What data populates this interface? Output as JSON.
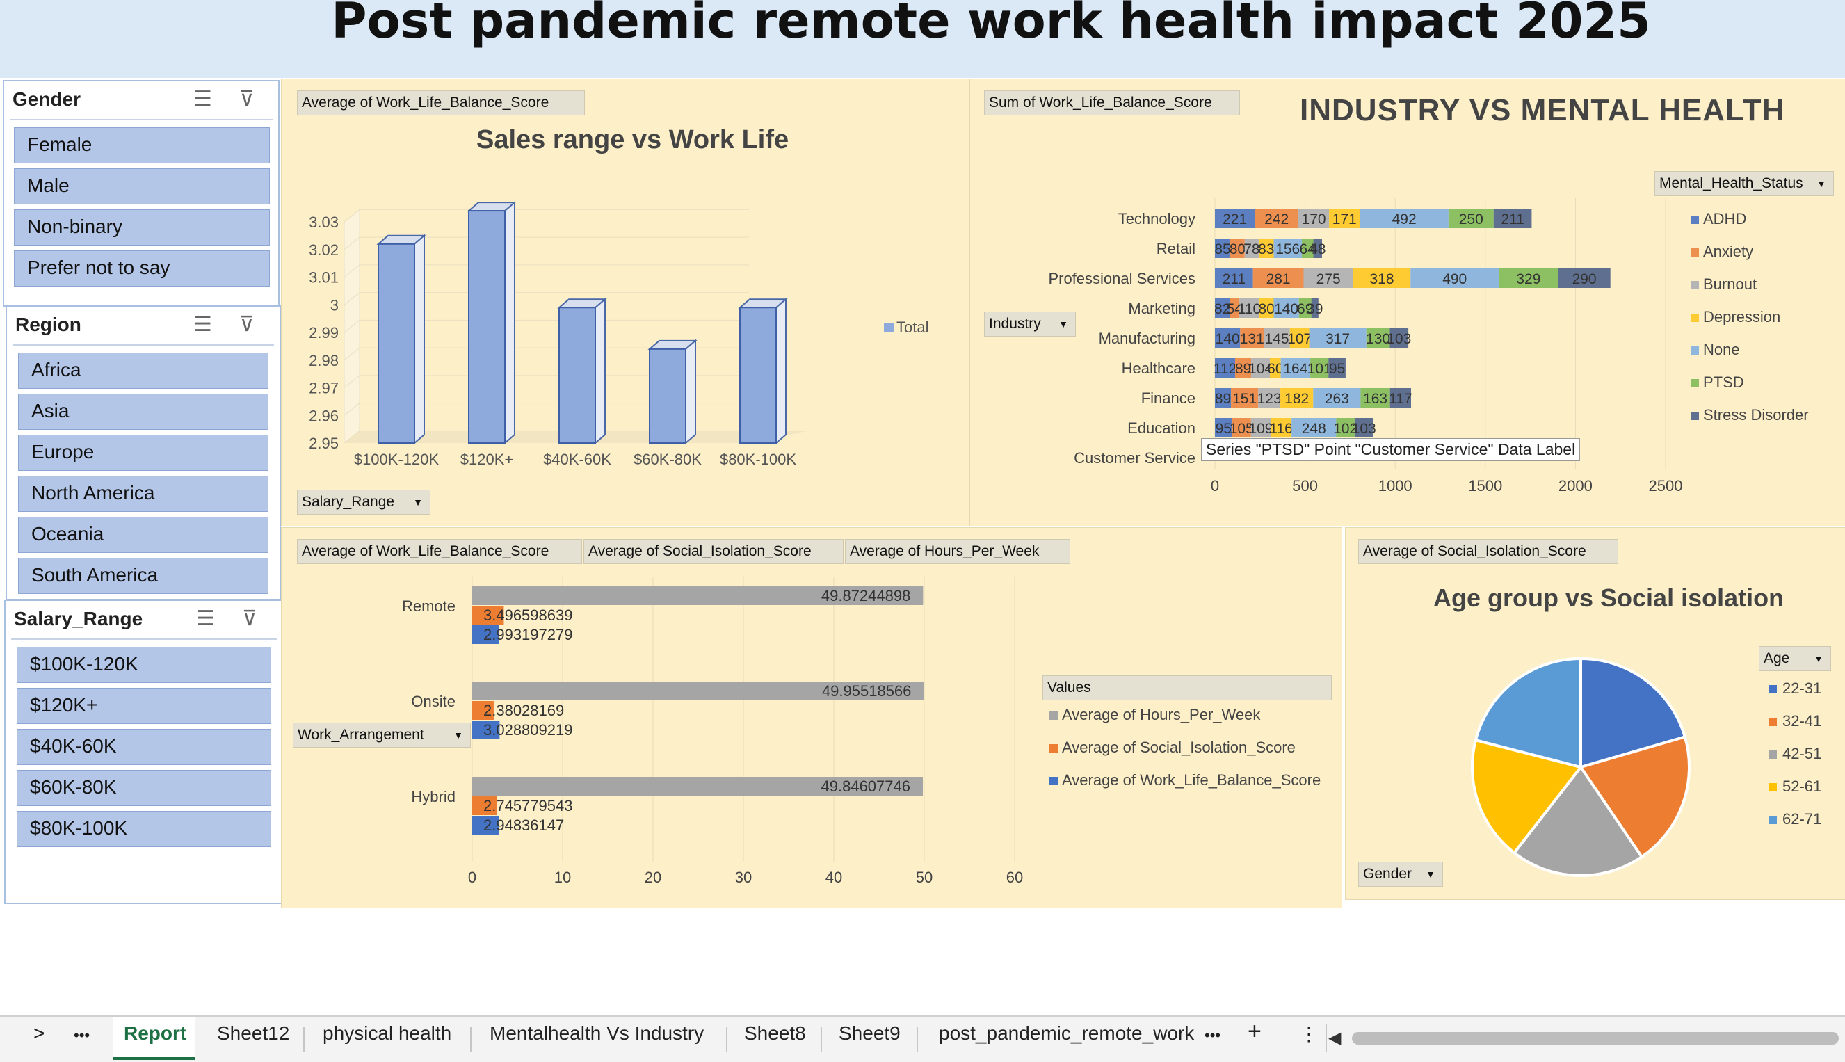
{
  "title": "Post pandemic remote work health impact 2025",
  "slicers": {
    "gender": {
      "title": "Gender",
      "items": [
        "Female",
        "Male",
        "Non-binary",
        "Prefer not to say"
      ]
    },
    "region": {
      "title": "Region",
      "items": [
        "Africa",
        "Asia",
        "Europe",
        "North America",
        "Oceania",
        "South America"
      ]
    },
    "salary": {
      "title": "Salary_Range",
      "items": [
        "$100K-120K",
        "$120K+",
        "$40K-60K",
        "$60K-80K",
        "$80K-100K"
      ]
    }
  },
  "chart1": {
    "field_value": "Average of Work_Life_Balance_Score",
    "title": "Sales range vs Work Life",
    "axis_field": "Salary_Range",
    "legend": "Total"
  },
  "chart2": {
    "field_value": "Sum of Work_Life_Balance_Score",
    "title": "INDUSTRY VS MENTAL HEALTH",
    "axis_field": "Industry",
    "legend_field": "Mental_Health_Status",
    "tooltip": "Series \"PTSD\" Point \"Customer Service\" Data Label"
  },
  "chart3": {
    "fields": [
      "Average of Work_Life_Balance_Score",
      "Average of Social_Isolation_Score",
      "Average of Hours_Per_Week"
    ],
    "axis_field": "Work_Arrangement",
    "legend_title": "Values"
  },
  "chart4": {
    "field_value": "Average of Social_Isolation_Score",
    "title": "Age group vs Social isolation",
    "legend_field": "Age",
    "filter_field": "Gender"
  },
  "chart_data": [
    {
      "type": "bar",
      "categories": [
        "$100K-120K",
        "$120K+",
        "$40K-60K",
        "$60K-80K",
        "$80K-100K"
      ],
      "series": [
        {
          "name": "Total",
          "values": [
            3.022,
            3.034,
            2.999,
            2.984,
            2.999
          ]
        }
      ],
      "title": "Sales range vs Work Life",
      "ylim": [
        2.95,
        3.03
      ],
      "yticks": [
        "2.95",
        "2.96",
        "2.97",
        "2.98",
        "2.99",
        "3",
        "3.01",
        "3.02",
        "3.03"
      ],
      "legend": "right"
    },
    {
      "type": "bar",
      "orientation": "horizontal",
      "stacked": true,
      "title": "INDUSTRY VS MENTAL HEALTH",
      "categories": [
        "Technology",
        "Retail",
        "Professional Services",
        "Marketing",
        "Manufacturing",
        "Healthcare",
        "Finance",
        "Education",
        "Customer Service"
      ],
      "series": [
        {
          "name": "ADHD",
          "color": "#5b7fc0",
          "values": [
            221,
            85,
            211,
            82,
            140,
            112,
            89,
            95,
            0
          ]
        },
        {
          "name": "Anxiety",
          "color": "#ed8f4f",
          "values": [
            242,
            80,
            281,
            54,
            131,
            89,
            151,
            105,
            0
          ]
        },
        {
          "name": "Burnout",
          "color": "#b5b5b5",
          "values": [
            170,
            78,
            275,
            110,
            145,
            104,
            123,
            109,
            0
          ]
        },
        {
          "name": "Depression",
          "color": "#ffcb33",
          "values": [
            171,
            83,
            318,
            80,
            107,
            60,
            182,
            116,
            0
          ]
        },
        {
          "name": "None",
          "color": "#8fb7de",
          "values": [
            492,
            156,
            490,
            140,
            317,
            164,
            263,
            248,
            0
          ]
        },
        {
          "name": "PTSD",
          "color": "#8dc063",
          "values": [
            250,
            64,
            329,
            69,
            130,
            101,
            163,
            102,
            0
          ]
        },
        {
          "name": "Stress Disorder",
          "color": "#5f6f8f",
          "values": [
            211,
            48,
            290,
            39,
            103,
            95,
            117,
            103,
            0
          ]
        }
      ],
      "data_labels": [
        [
          "221",
          "242",
          "170",
          "171",
          "492",
          "250",
          "211"
        ],
        [
          "85",
          "80",
          "78",
          "83",
          "156",
          "64",
          "48"
        ],
        [
          "211",
          "281",
          "275",
          "318",
          "490",
          "329",
          "290"
        ],
        [
          "82",
          "54",
          "110",
          "80",
          "140",
          "69",
          "39"
        ],
        [
          "140",
          "131",
          "145",
          "107",
          "317",
          "130",
          "103"
        ],
        [
          "112",
          "89",
          "104",
          "60",
          "164",
          "101",
          "95"
        ],
        [
          "89",
          "151",
          "123",
          "182",
          "263",
          "163",
          "117"
        ],
        [
          "95",
          "105",
          "109",
          "116",
          "248",
          "102",
          "103"
        ],
        [
          "",
          "",
          "",
          "",
          "",
          "",
          ""
        ]
      ],
      "xlim": [
        0,
        2500
      ],
      "xticks": [
        "0",
        "500",
        "1000",
        "1500",
        "2000",
        "2500"
      ],
      "legend": "right"
    },
    {
      "type": "bar",
      "orientation": "horizontal",
      "categories": [
        "Remote",
        "Onsite",
        "Hybrid"
      ],
      "series": [
        {
          "name": "Average of Hours_Per_Week",
          "color": "#a5a5a5",
          "values": [
            49.87244898,
            49.95518566,
            49.84607746
          ],
          "labels": [
            "49.87244898",
            "49.95518566",
            "49.84607746"
          ]
        },
        {
          "name": "Average of Social_Isolation_Score",
          "color": "#ed7d31",
          "values": [
            3.496598639,
            2.38028169,
            2.745779543
          ],
          "labels": [
            "3.496598639",
            "2.38028169",
            "2.745779543"
          ]
        },
        {
          "name": "Average of Work_Life_Balance_Score",
          "color": "#4472c4",
          "values": [
            2.993197279,
            3.028809219,
            2.94836147
          ],
          "labels": [
            "2.993197279",
            "3.028809219",
            "2.94836147"
          ]
        }
      ],
      "xlim": [
        0,
        60
      ],
      "xticks": [
        "0",
        "10",
        "20",
        "30",
        "40",
        "50",
        "60"
      ],
      "legend": "right"
    },
    {
      "type": "pie",
      "title": "Age group vs Social isolation",
      "categories": [
        "22-31",
        "32-41",
        "42-51",
        "52-61",
        "62-71"
      ],
      "values": [
        20.5,
        20.0,
        20.0,
        18.5,
        21.0
      ],
      "colors": [
        "#4472c4",
        "#ed7d31",
        "#a5a5a5",
        "#ffc000",
        "#5b9bd5"
      ],
      "legend": "right"
    }
  ],
  "sheet_tabs": [
    "Report",
    "Sheet12",
    "physical health",
    "Mentalhealth Vs Industry",
    "Sheet8",
    "Sheet9",
    "post_pandemic_remote_work"
  ],
  "tab_controls": {
    "prev": ">",
    "more": "•••",
    "more2": "•••",
    "add": "+",
    "menu": "⋮"
  }
}
